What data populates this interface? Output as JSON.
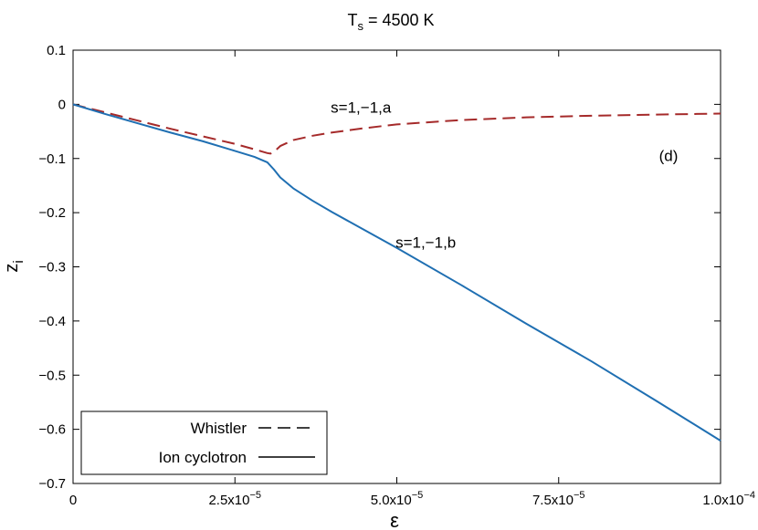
{
  "chart_data": {
    "type": "line",
    "title_main": "T",
    "title_sub": "s",
    "title_rest": " = 4500 K",
    "xlabel": "ε",
    "ylabel_main": "z",
    "ylabel_sub": "i",
    "xlim": [
      0,
      0.0001
    ],
    "ylim": [
      -0.7,
      0.1
    ],
    "x_ticks": [
      0,
      2.5e-05,
      5e-05,
      7.5e-05,
      0.0001
    ],
    "x_tick_labels": [
      "0",
      "2.5x10",
      "5.0x10",
      "7.5x10",
      "1.0x10"
    ],
    "x_tick_exponents": [
      "",
      "−5",
      "−5",
      "−5",
      "−4"
    ],
    "y_ticks": [
      0.1,
      0,
      -0.1,
      -0.2,
      -0.3,
      -0.4,
      -0.5,
      -0.6,
      -0.7
    ],
    "y_tick_labels": [
      "0.1",
      "0",
      "−0.1",
      "−0.2",
      "−0.3",
      "−0.4",
      "−0.5",
      "−0.6",
      "−0.7"
    ],
    "grid": false,
    "legend_position": "bottom-left",
    "annotations": [
      {
        "text": "s=1,−1,a",
        "x": 3.98e-05,
        "y": -0.015
      },
      {
        "text": "s=1,−1,b",
        "x": 4.98e-05,
        "y": -0.265
      },
      {
        "text": "(d)",
        "x": 9.05e-05,
        "y": -0.105
      }
    ],
    "series": [
      {
        "name": "Whistler",
        "style": "dashed",
        "color": "#a52a2a",
        "x": [
          0,
          5e-06,
          1e-05,
          1.5e-05,
          2e-05,
          2.5e-05,
          2.8e-05,
          3e-05,
          3.05e-05,
          3.1e-05,
          3.2e-05,
          3.4e-05,
          3.7e-05,
          4e-05,
          4.5e-05,
          5e-05,
          6e-05,
          7e-05,
          8e-05,
          9e-05,
          0.0001
        ],
        "y": [
          0,
          -0.015,
          -0.03,
          -0.045,
          -0.059,
          -0.073,
          -0.083,
          -0.09,
          -0.091,
          -0.088,
          -0.077,
          -0.066,
          -0.058,
          -0.052,
          -0.044,
          -0.037,
          -0.029,
          -0.024,
          -0.021,
          -0.019,
          -0.017
        ]
      },
      {
        "name": "Ion cyclotron",
        "style": "solid",
        "color": "#1f6fb2",
        "x": [
          0,
          5e-06,
          1e-05,
          1.5e-05,
          2e-05,
          2.5e-05,
          2.8e-05,
          3e-05,
          3.1e-05,
          3.2e-05,
          3.4e-05,
          3.7e-05,
          4e-05,
          4.5e-05,
          5e-05,
          6e-05,
          7e-05,
          8e-05,
          9e-05,
          0.0001
        ],
        "y": [
          0,
          -0.018,
          -0.035,
          -0.052,
          -0.068,
          -0.086,
          -0.097,
          -0.107,
          -0.12,
          -0.135,
          -0.155,
          -0.178,
          -0.199,
          -0.232,
          -0.265,
          -0.334,
          -0.405,
          -0.474,
          -0.547,
          -0.621
        ]
      }
    ]
  }
}
